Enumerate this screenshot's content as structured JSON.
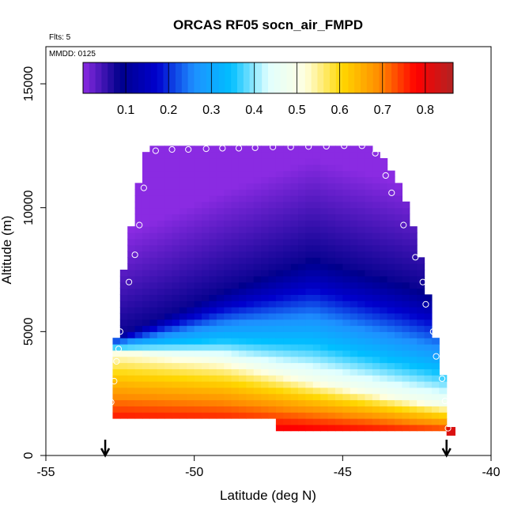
{
  "chart_data": {
    "type": "heatmap",
    "title": "ORCAS RF05 socn_air_FMPD",
    "flights_label": "Flts: 5",
    "mmdd_label": "MMDD: 0125",
    "xlabel": "Latitude (deg N)",
    "ylabel": "Altitude (m)",
    "xlim": [
      -55,
      -40
    ],
    "ylim": [
      0,
      16500
    ],
    "x_ticks": [
      -55,
      -50,
      -45,
      -40
    ],
    "x_tick_labels": [
      "-55",
      "-50",
      "-45",
      "-40"
    ],
    "y_ticks": [
      0,
      5000,
      10000,
      15000
    ],
    "y_tick_labels": [
      "0",
      "5000",
      "10000",
      "15000"
    ],
    "colorbar": {
      "range": [
        0,
        0.865
      ],
      "ticks": [
        0.1,
        0.2,
        0.3,
        0.4,
        0.5,
        0.6,
        0.7,
        0.8
      ],
      "tick_labels": [
        "0.1",
        "0.2",
        "0.3",
        "0.4",
        "0.5",
        "0.6",
        "0.7",
        "0.8"
      ],
      "colors": [
        "#8a2be2",
        "#00008b",
        "#0000cd",
        "#1e90ff",
        "#00bfff",
        "#e0ffff",
        "#ffffe0",
        "#ffd700",
        "#ff8c00",
        "#ff0000",
        "#b22222"
      ]
    },
    "grid": false,
    "legend": "top (colorbar)",
    "field_model": {
      "mid_altitude_at_lat": [
        [
          -52.5,
          4200
        ],
        [
          -49,
          3800
        ],
        [
          -46,
          3000
        ],
        [
          -43,
          2300
        ],
        [
          -41.5,
          2000
        ]
      ],
      "min_altitude_at_lat": [
        [
          -52.5,
          4900
        ],
        [
          -49,
          6700
        ],
        [
          -46,
          8000
        ],
        [
          -43,
          7000
        ],
        [
          -41.5,
          6400
        ]
      ]
    },
    "domain_edges": {
      "left": [
        [
          1300,
          -52.9
        ],
        [
          1600,
          -52.8
        ],
        [
          4000,
          -52.7
        ],
        [
          6000,
          -52.5
        ],
        [
          8200,
          -52.3
        ],
        [
          10800,
          -51.9
        ],
        [
          12500,
          -51.6
        ]
      ],
      "right": [
        [
          800,
          -41.4
        ],
        [
          1100,
          -41.5
        ],
        [
          3200,
          -41.6
        ],
        [
          4900,
          -41.9
        ],
        [
          7000,
          -42.2
        ],
        [
          8200,
          -42.4
        ],
        [
          10000,
          -42.8
        ],
        [
          11300,
          -43.2
        ],
        [
          12500,
          -44.0
        ]
      ],
      "bottom_right_cutoff": [
        [
          -47.2,
          1000
        ],
        [
          -41.5,
          1000
        ]
      ]
    },
    "flight_track_points": [
      {
        "lat": -52.85,
        "alt": 1400
      },
      {
        "lat": -52.8,
        "alt": 2150
      },
      {
        "lat": -52.7,
        "alt": 3000
      },
      {
        "lat": -52.62,
        "alt": 3800
      },
      {
        "lat": -52.55,
        "alt": 4300
      },
      {
        "lat": -52.5,
        "alt": 5000
      },
      {
        "lat": -52.2,
        "alt": 7000
      },
      {
        "lat": -52.0,
        "alt": 8100
      },
      {
        "lat": -51.85,
        "alt": 9300
      },
      {
        "lat": -51.7,
        "alt": 10800
      },
      {
        "lat": -51.3,
        "alt": 12300
      },
      {
        "lat": -50.75,
        "alt": 12350
      },
      {
        "lat": -50.2,
        "alt": 12350
      },
      {
        "lat": -49.6,
        "alt": 12380
      },
      {
        "lat": -49.05,
        "alt": 12400
      },
      {
        "lat": -48.5,
        "alt": 12400
      },
      {
        "lat": -47.95,
        "alt": 12420
      },
      {
        "lat": -47.35,
        "alt": 12450
      },
      {
        "lat": -46.75,
        "alt": 12450
      },
      {
        "lat": -46.15,
        "alt": 12470
      },
      {
        "lat": -45.55,
        "alt": 12480
      },
      {
        "lat": -44.95,
        "alt": 12500
      },
      {
        "lat": -44.35,
        "alt": 12500
      },
      {
        "lat": -43.9,
        "alt": 12200
      },
      {
        "lat": -43.55,
        "alt": 11300
      },
      {
        "lat": -43.35,
        "alt": 10600
      },
      {
        "lat": -42.95,
        "alt": 9300
      },
      {
        "lat": -42.55,
        "alt": 8000
      },
      {
        "lat": -42.3,
        "alt": 7000
      },
      {
        "lat": -42.2,
        "alt": 6100
      },
      {
        "lat": -41.95,
        "alt": 5000
      },
      {
        "lat": -41.85,
        "alt": 4000
      },
      {
        "lat": -41.65,
        "alt": 3100
      },
      {
        "lat": -41.55,
        "alt": 2200
      },
      {
        "lat": -41.45,
        "alt": 1100
      }
    ],
    "arrows_lat": [
      -53,
      -41.5
    ]
  }
}
